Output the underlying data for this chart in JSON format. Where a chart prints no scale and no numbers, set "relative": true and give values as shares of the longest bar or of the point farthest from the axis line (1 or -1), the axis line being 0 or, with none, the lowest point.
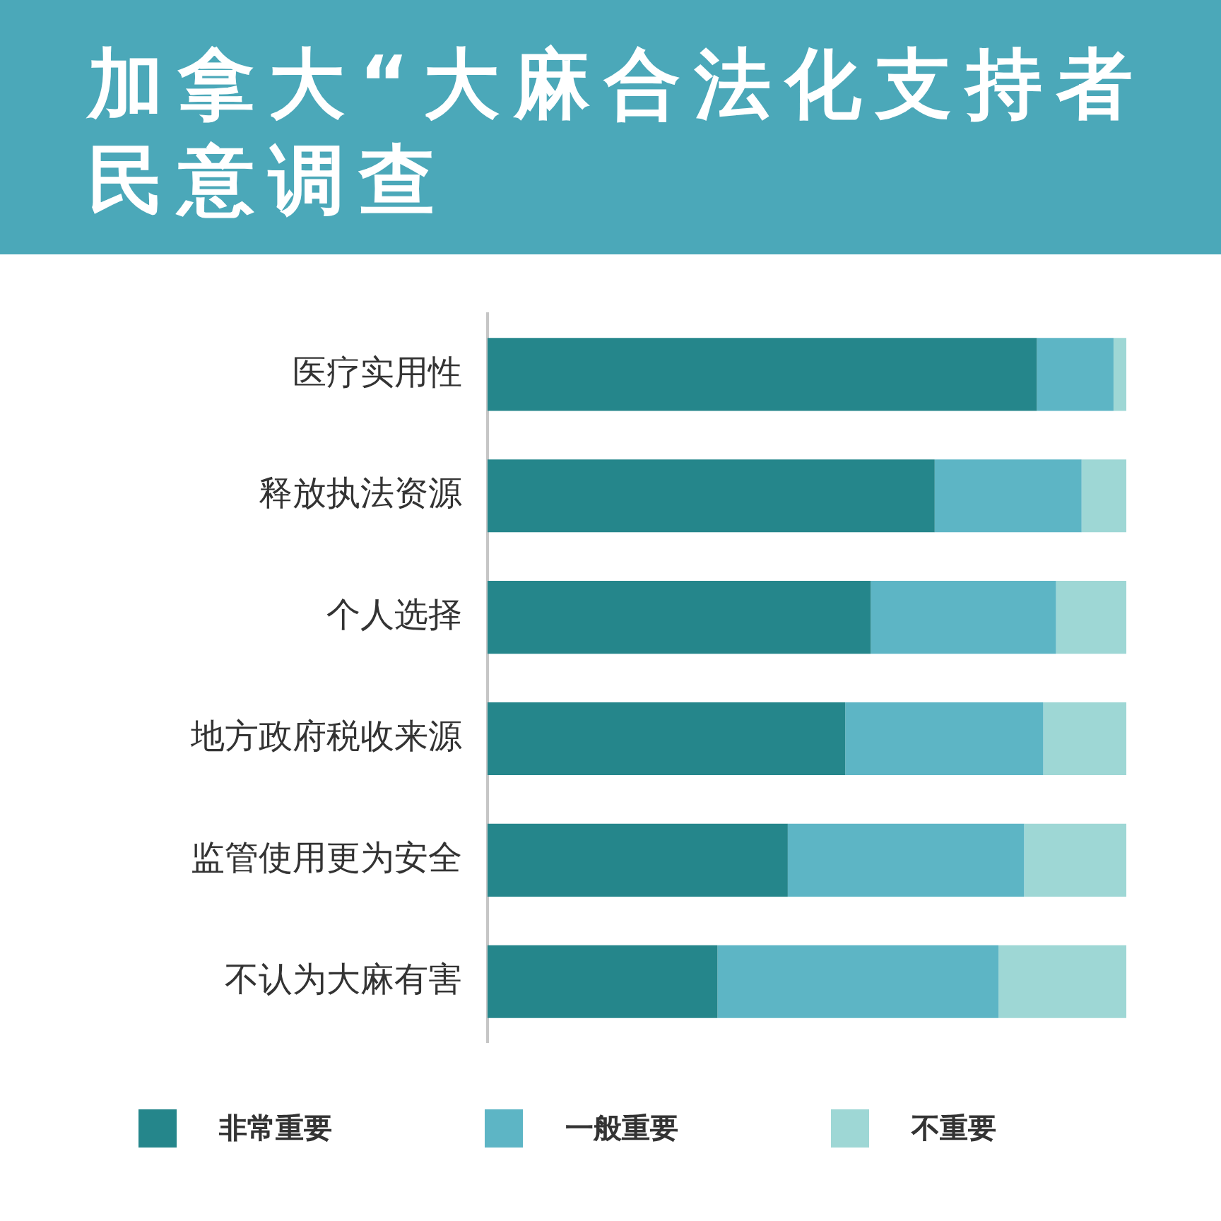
{
  "chart_data": {
    "type": "bar",
    "title": "加拿大“大麻合法化支持者民意调查",
    "orientation": "horizontal",
    "stacked": true,
    "relative": true,
    "grid": false,
    "legend": "bottom",
    "categories": [
      "医疗实用性",
      "释放执法资源",
      "个人选择",
      "地方政府税收来源",
      "监管使用更为安全",
      "不认为大麻有害"
    ],
    "series": [
      {
        "name": "非常重要",
        "color": "#25868b",
        "values": [
          0.86,
          0.7,
          0.6,
          0.56,
          0.47,
          0.36
        ]
      },
      {
        "name": "一般重要",
        "color": "#5db5c5",
        "values": [
          0.12,
          0.23,
          0.29,
          0.31,
          0.37,
          0.44
        ]
      },
      {
        "name": "不重要",
        "color": "#9ed7d5",
        "values": [
          0.02,
          0.07,
          0.11,
          0.13,
          0.16,
          0.2
        ]
      }
    ]
  }
}
